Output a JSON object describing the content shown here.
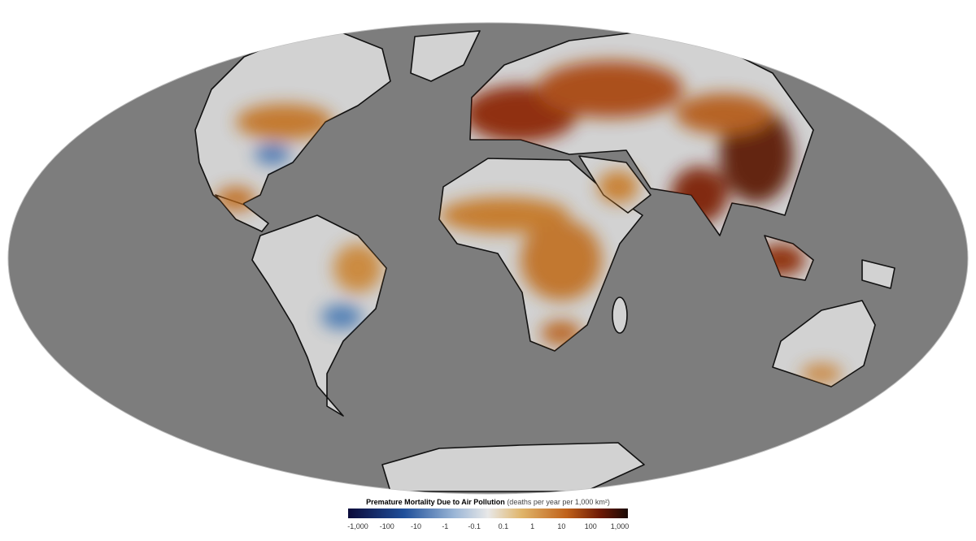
{
  "legend": {
    "title": "Premature Mortality Due to Air Pollution",
    "unit": "(deaths per year per 1,000 km²)",
    "ticks": [
      "-1,000",
      "-100",
      "-10",
      "-1",
      "-0.1",
      "0.1",
      "1",
      "10",
      "100",
      "1,000"
    ]
  }
}
